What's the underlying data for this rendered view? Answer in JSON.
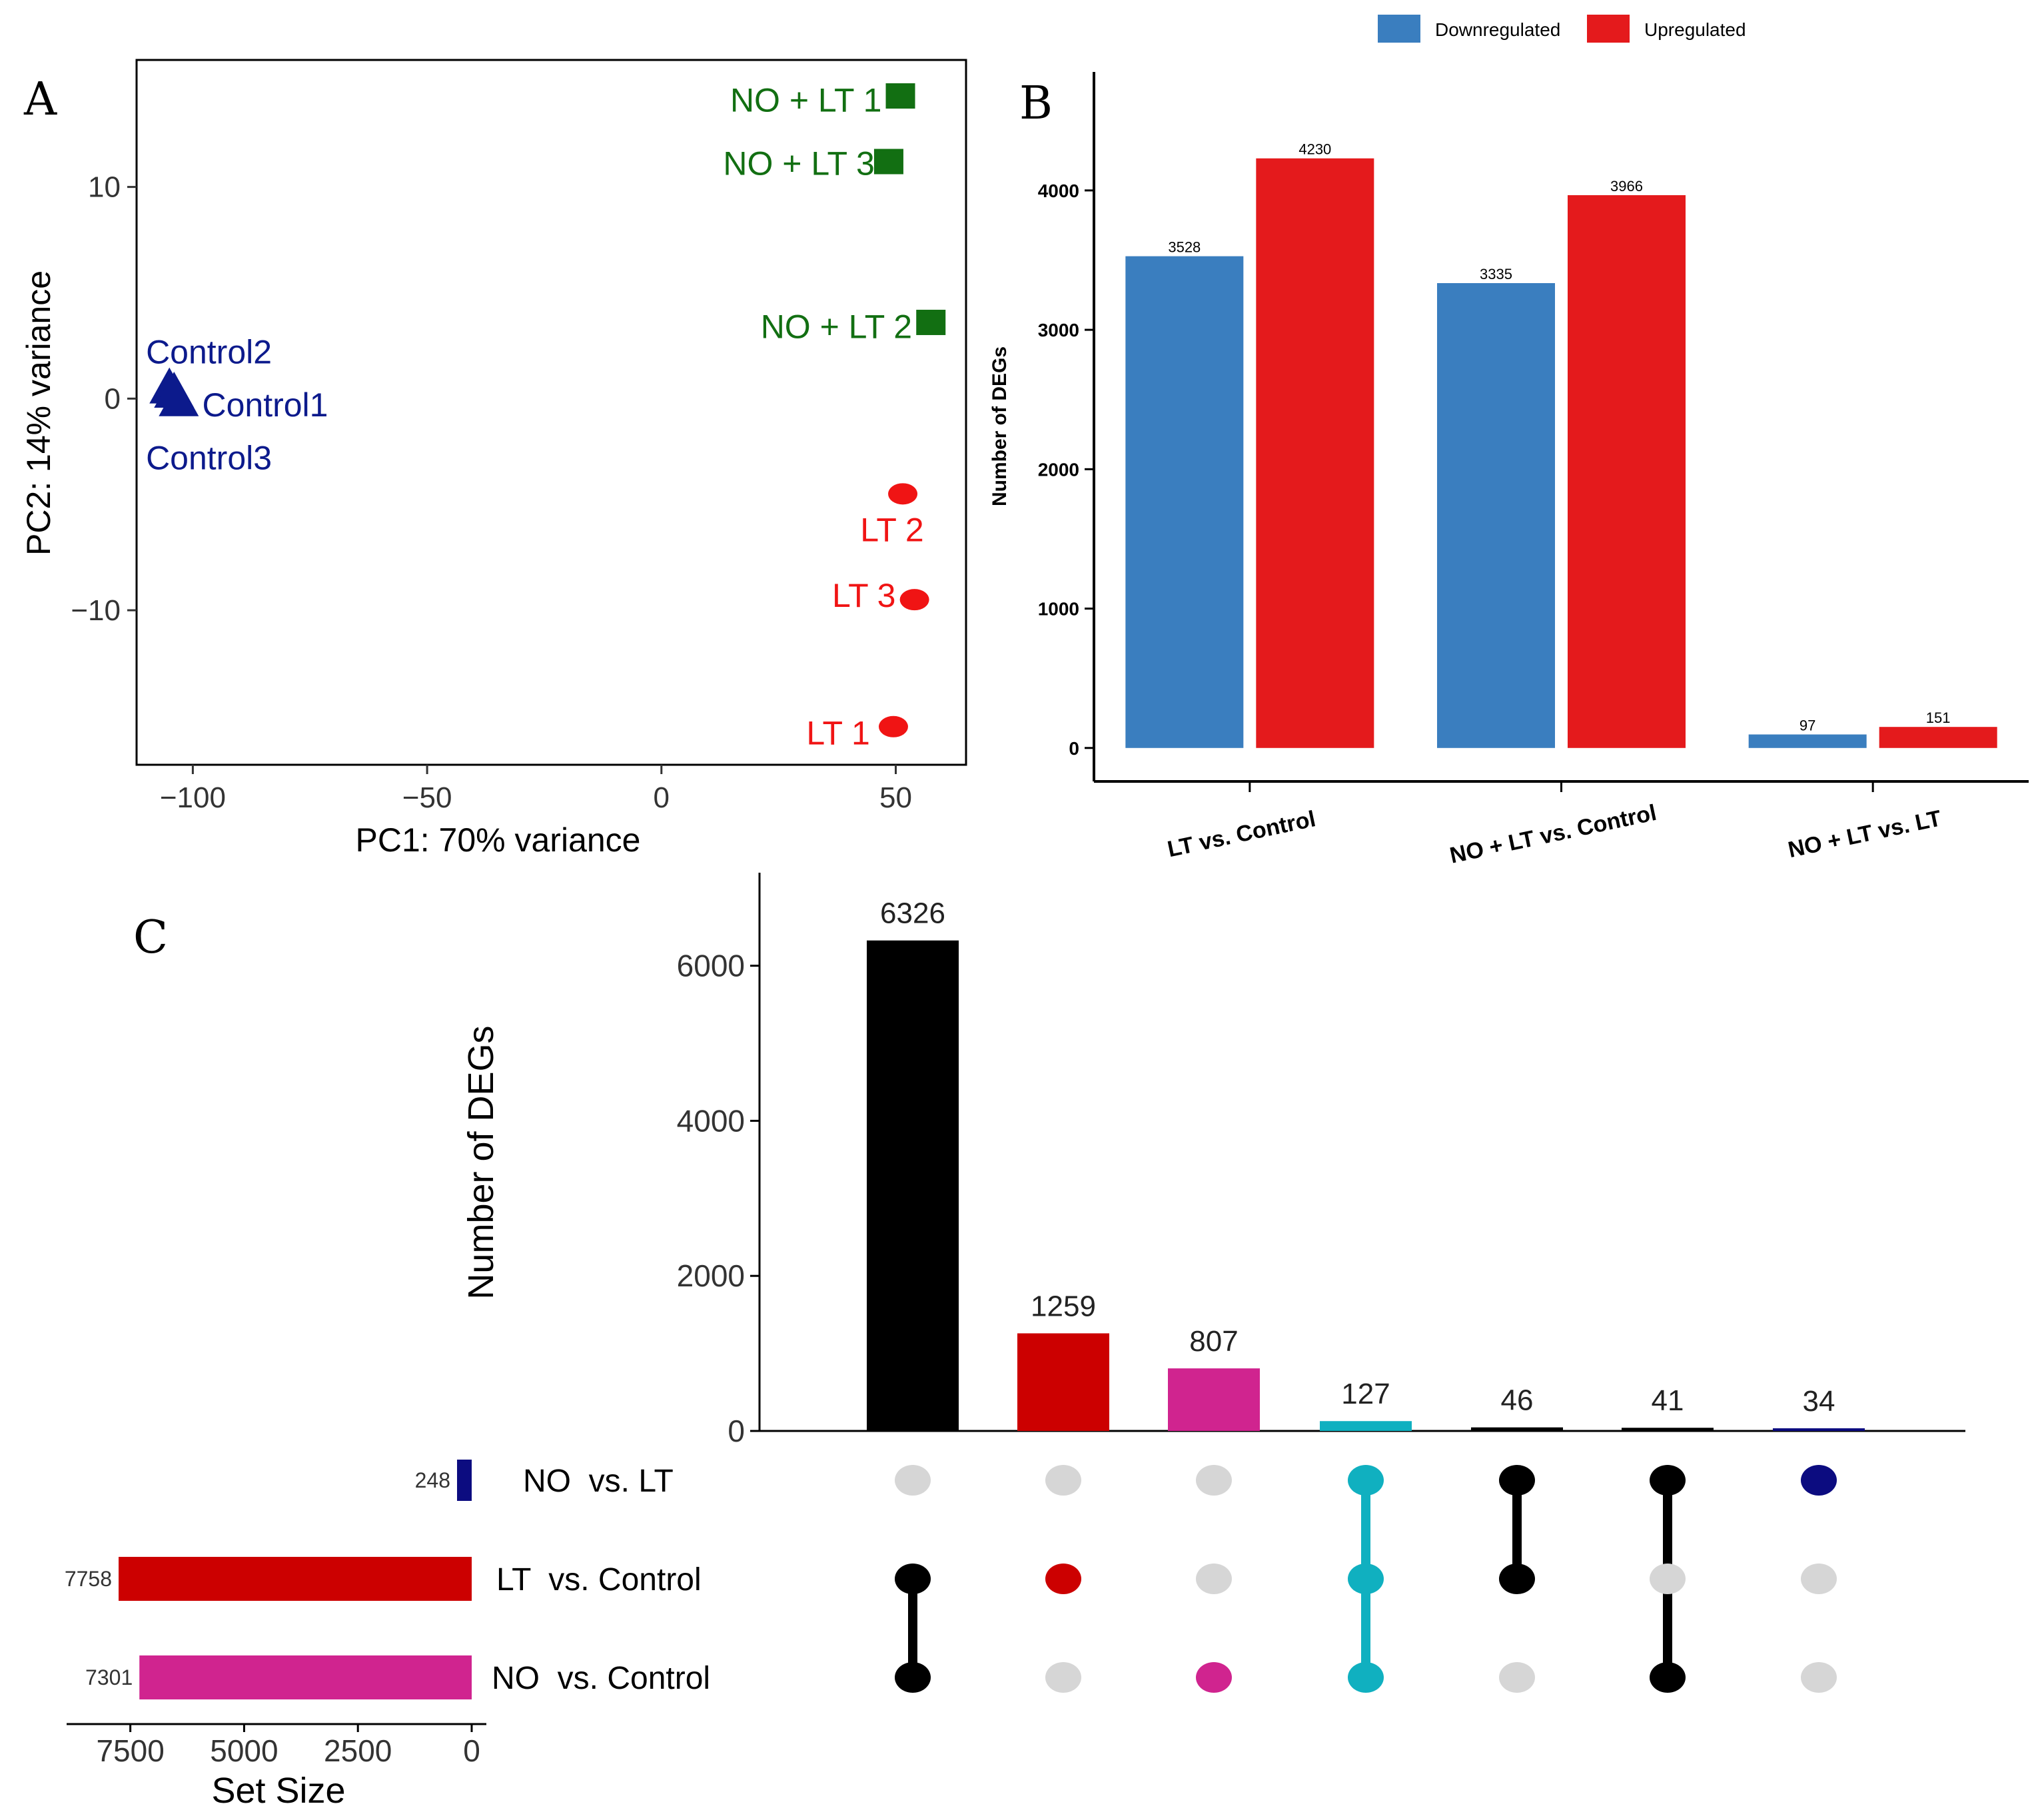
{
  "colors": {
    "downregulated": "#3a7ebf",
    "upregulated": "#e41a1c",
    "control": "#0c1a8c",
    "no_lt": "#126f12",
    "lt": "#f01414",
    "upset_black": "#000000",
    "upset_red": "#cc0000",
    "upset_magenta": "#d0248f",
    "upset_teal": "#10b0c0",
    "upset_navy": "#0c0c80",
    "dot_inactive": "#d6d6d6"
  },
  "chart_data": [
    {
      "panel": "A",
      "type": "scatter",
      "panel_label": "A",
      "xlabel": "PC1: 70% variance",
      "ylabel": "PC2: 14% variance",
      "xlim": [
        -112,
        65
      ],
      "ylim": [
        -17.3,
        16
      ],
      "xticks": [
        -100,
        -50,
        0,
        50
      ],
      "xtick_labels": [
        "−100",
        "−50",
        "0",
        "50"
      ],
      "yticks": [
        10,
        0,
        -10
      ],
      "ytick_labels": [
        "10",
        "0",
        "−10"
      ],
      "groups": [
        {
          "name": "Control",
          "marker": "triangle",
          "color_key": "control",
          "points": [
            {
              "label": "Control2",
              "x": -105,
              "y": 0.4,
              "label_x": -110,
              "label_y": 2.2
            },
            {
              "label": "Control1",
              "x": -103,
              "y": -0.2,
              "label_x": -98,
              "label_y": -0.3
            },
            {
              "label": "Control3",
              "x": -104,
              "y": 0.2,
              "label_x": -110,
              "label_y": -2.8
            }
          ]
        },
        {
          "name": "NO + LT",
          "marker": "square",
          "color_key": "no_lt",
          "points": [
            {
              "label": "NO + LT 1",
              "x": 51,
              "y": 14.3,
              "label_x": 47,
              "label_y": 14.1
            },
            {
              "label": "NO + LT 3",
              "x": 48.5,
              "y": 11.2,
              "label_x": 45.5,
              "label_y": 11.1
            },
            {
              "label": "NO + LT 2",
              "x": 57.5,
              "y": 3.6,
              "label_x": 53.5,
              "label_y": 3.4
            }
          ]
        },
        {
          "name": "LT",
          "marker": "circle",
          "color_key": "lt",
          "points": [
            {
              "label": "LT 2",
              "x": 51.5,
              "y": -4.5,
              "label_x": 56,
              "label_y": -6.2
            },
            {
              "label": "LT 3",
              "x": 54,
              "y": -9.5,
              "label_x": 50,
              "label_y": -9.3
            },
            {
              "label": "LT 1",
              "x": 49.5,
              "y": -15.5,
              "label_x": 44.5,
              "label_y": -15.8
            }
          ]
        }
      ]
    },
    {
      "panel": "B",
      "type": "bar",
      "panel_label": "B",
      "ylabel": "Number of DEGs",
      "ylim": [
        -240,
        4850
      ],
      "yticks": [
        0,
        1000,
        2000,
        3000,
        4000
      ],
      "categories": [
        "LT vs. Control",
        "NO + LT vs. Control",
        "NO + LT vs. LT"
      ],
      "series": [
        {
          "name": "Downregulated",
          "color_key": "downregulated",
          "values": [
            3528,
            3335,
            97
          ]
        },
        {
          "name": "Upregulated",
          "color_key": "upregulated",
          "values": [
            4230,
            3966,
            151
          ]
        }
      ],
      "legend_position": "top-center"
    },
    {
      "panel": "C",
      "type": "bar",
      "subtype": "upset",
      "panel_label": "C",
      "ylabel": "Number of DEGs",
      "ylim": [
        0,
        7200
      ],
      "yticks": [
        0,
        2000,
        4000,
        6000
      ],
      "set_size_label": "Set Size",
      "set_size_ticks": [
        7500,
        5000,
        2500,
        0
      ],
      "set_size_xlim": [
        0,
        8900
      ],
      "sets": [
        {
          "name": "NO  vs. LT",
          "size": 248,
          "color_key": "upset_navy"
        },
        {
          "name": "LT  vs. Control",
          "size": 7758,
          "color_key": "upset_red"
        },
        {
          "name": "NO  vs. Control",
          "size": 7301,
          "color_key": "upset_magenta"
        }
      ],
      "intersections": [
        {
          "value": 6326,
          "color_key": "upset_black",
          "members": [
            1,
            2
          ]
        },
        {
          "value": 1259,
          "color_key": "upset_red",
          "members": [
            1
          ]
        },
        {
          "value": 807,
          "color_key": "upset_magenta",
          "members": [
            2
          ]
        },
        {
          "value": 127,
          "color_key": "upset_teal",
          "members": [
            0,
            1,
            2
          ]
        },
        {
          "value": 46,
          "color_key": "upset_black",
          "members": [
            0,
            1
          ]
        },
        {
          "value": 41,
          "color_key": "upset_black",
          "members": [
            0,
            2
          ]
        },
        {
          "value": 34,
          "color_key": "upset_navy",
          "members": [
            0
          ]
        }
      ]
    }
  ]
}
